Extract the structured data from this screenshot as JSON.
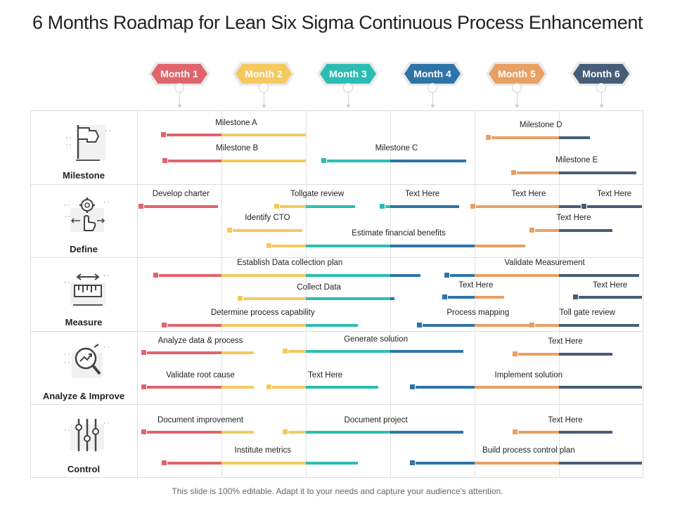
{
  "title": "6 Months Roadmap for Lean Six Sigma Continuous Process Enhancement",
  "footer": "This slide is 100% editable. Adapt it to your needs and capture your audience's attention.",
  "colors": {
    "red": "#e0646b",
    "yellow": "#f4c95d",
    "teal": "#2bbdb3",
    "blue": "#2e74a8",
    "orange": "#e8a063",
    "navy": "#465d78"
  },
  "months": [
    {
      "label": "Month 1",
      "color": "#e0646b"
    },
    {
      "label": "Month 2",
      "color": "#f4c95d"
    },
    {
      "label": "Month 3",
      "color": "#2bbdb3"
    },
    {
      "label": "Month 4",
      "color": "#2e74a8"
    },
    {
      "label": "Month 5",
      "color": "#e8a063"
    },
    {
      "label": "Month 6",
      "color": "#465d78"
    }
  ],
  "rows": [
    {
      "label": "Milestone",
      "icon": "flag-icon"
    },
    {
      "label": "Define",
      "icon": "gear-hand-icon"
    },
    {
      "label": "Measure",
      "icon": "ruler-icon"
    },
    {
      "label": "Analyze & Improve",
      "icon": "analysis-magnifier-icon"
    },
    {
      "label": "Control",
      "icon": "sliders-icon"
    }
  ],
  "bars": [
    {
      "label": "Milestone A",
      "start": 0.35,
      "end": 2.0
    },
    {
      "label": "Milestone B",
      "start": 0.37,
      "end": 2.0
    },
    {
      "label": "Milestone C",
      "start": 2.25,
      "end": 3.9
    },
    {
      "label": "Milestone D",
      "start": 4.2,
      "end": 5.37
    },
    {
      "label": "Milestone E",
      "start": 4.5,
      "end": 5.92
    },
    {
      "label": "Develop charter",
      "start": 0.08,
      "end": 0.96
    },
    {
      "label": "Tollgate review",
      "start": 1.69,
      "end": 2.58
    },
    {
      "label": "Text Here",
      "start": 2.94,
      "end": 3.82
    },
    {
      "label": "Text Here",
      "start": 4.02,
      "end": 5.26
    },
    {
      "label": "Text Here",
      "start": 5.33,
      "end": 5.98
    },
    {
      "label": "Identify CTO",
      "start": 1.13,
      "end": 1.96
    },
    {
      "label": "Text Here",
      "start": 4.72,
      "end": 5.63
    },
    {
      "label": "Estimate financial benefits",
      "start": 1.6,
      "end": 4.6
    },
    {
      "label": "Establish Data collection plan",
      "start": 0.26,
      "end": 3.36
    },
    {
      "label": "Validate Measurement",
      "start": 3.71,
      "end": 5.95
    },
    {
      "label": "Collect Data",
      "start": 1.26,
      "end": 3.05
    },
    {
      "label": "Text Here",
      "start": 3.68,
      "end": 4.35
    },
    {
      "label": "Text Here",
      "start": 5.23,
      "end": 5.98
    },
    {
      "label": "Determine process capability",
      "start": 0.36,
      "end": 2.62
    },
    {
      "label": "Process mapping",
      "start": 3.38,
      "end": 4.7
    },
    {
      "label": "Toll gate review",
      "start": 4.72,
      "end": 5.95
    },
    {
      "label": "Analyze  data & process",
      "start": 0.12,
      "end": 1.38
    },
    {
      "label": "Generate solution",
      "start": 1.79,
      "end": 3.87
    },
    {
      "label": "Text Here",
      "start": 4.52,
      "end": 5.63
    },
    {
      "label": "Validate root cause",
      "start": 0.12,
      "end": 1.38
    },
    {
      "label": "Text Here",
      "start": 1.6,
      "end": 2.86
    },
    {
      "label": "Implement solution",
      "start": 3.3,
      "end": 5.98
    },
    {
      "label": "Document improvement",
      "start": 0.12,
      "end": 1.38
    },
    {
      "label": "Document project",
      "start": 1.79,
      "end": 3.87
    },
    {
      "label": "Text Here",
      "start": 4.52,
      "end": 5.63
    },
    {
      "label": "Institute metrics",
      "start": 0.36,
      "end": 2.62
    },
    {
      "label": "Build process control plan",
      "start": 3.3,
      "end": 5.98
    }
  ]
}
